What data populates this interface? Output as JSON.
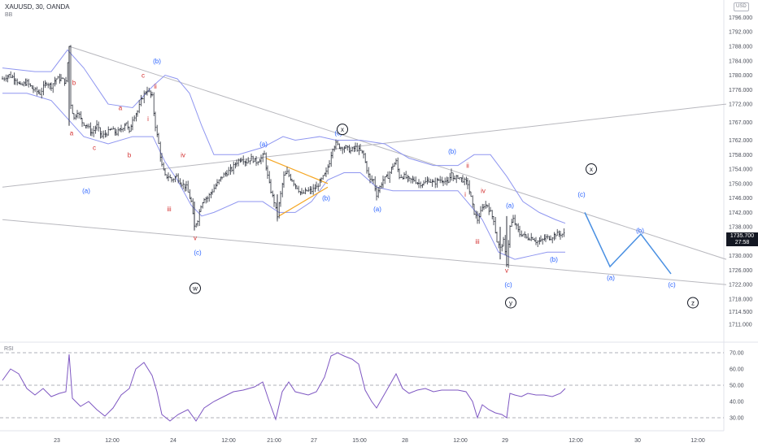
{
  "header": {
    "title": "XAUUSD, 30, OANDA",
    "indicator": "BB",
    "currency": "USD"
  },
  "price_tag": {
    "price": "1735.700",
    "countdown": "27:58"
  },
  "rsi_label": "RSI",
  "colors": {
    "candle": "#2a2e39",
    "band": "#8f96f0",
    "trendline": "#b8b8be",
    "wave_red": "#d32f2f",
    "wave_blue": "#2962ff",
    "projection": "#4a90e2",
    "triangle": "#f5a623",
    "rsi_line": "#7e57c2",
    "rsi_guides": "#9598a1"
  },
  "chart_data": {
    "type": "candlestick",
    "symbol": "XAUUSD",
    "interval": "30",
    "ylim": [
      1709,
      1797
    ],
    "price_ticks": [
      "1796.000",
      "1792.000",
      "1788.000",
      "1784.000",
      "1780.000",
      "1776.000",
      "1772.000",
      "1767.000",
      "1762.000",
      "1758.000",
      "1754.000",
      "1750.000",
      "1746.000",
      "1742.000",
      "1738.000",
      "1734.000",
      "1730.000",
      "1726.000",
      "1722.000",
      "1718.000",
      "1714.500",
      "1711.000"
    ],
    "time_ticks": [
      "23",
      "12:00",
      "24",
      "12:00",
      "21:00",
      "27",
      "15:00",
      "28",
      "12:00",
      "29",
      "12:00",
      "30",
      "12:00"
    ],
    "price_path": [
      [
        0,
        1779
      ],
      [
        8,
        1780
      ],
      [
        16,
        1779
      ],
      [
        22,
        1777
      ],
      [
        30,
        1778
      ],
      [
        38,
        1776
      ],
      [
        46,
        1775
      ],
      [
        54,
        1778
      ],
      [
        60,
        1777
      ],
      [
        66,
        1779
      ],
      [
        72,
        1779
      ],
      [
        78,
        1778
      ],
      [
        82,
        1788
      ],
      [
        84,
        1772
      ],
      [
        88,
        1768
      ],
      [
        92,
        1770
      ],
      [
        98,
        1767
      ],
      [
        104,
        1766
      ],
      [
        110,
        1764
      ],
      [
        116,
        1766
      ],
      [
        122,
        1763
      ],
      [
        128,
        1764
      ],
      [
        134,
        1765
      ],
      [
        140,
        1764
      ],
      [
        146,
        1765
      ],
      [
        152,
        1767
      ],
      [
        156,
        1764
      ],
      [
        160,
        1768
      ],
      [
        166,
        1770
      ],
      [
        172,
        1774
      ],
      [
        178,
        1776
      ],
      [
        184,
        1774
      ],
      [
        188,
        1766
      ],
      [
        192,
        1761
      ],
      [
        196,
        1755
      ],
      [
        200,
        1752
      ],
      [
        204,
        1752
      ],
      [
        208,
        1751
      ],
      [
        214,
        1752
      ],
      [
        220,
        1750
      ],
      [
        226,
        1749
      ],
      [
        232,
        1745
      ],
      [
        236,
        1738
      ],
      [
        240,
        1740
      ],
      [
        244,
        1744
      ],
      [
        248,
        1746
      ],
      [
        252,
        1746
      ],
      [
        258,
        1748
      ],
      [
        264,
        1750
      ],
      [
        270,
        1752
      ],
      [
        276,
        1753
      ],
      [
        282,
        1754
      ],
      [
        288,
        1756
      ],
      [
        294,
        1757
      ],
      [
        300,
        1756
      ],
      [
        306,
        1757
      ],
      [
        312,
        1756
      ],
      [
        318,
        1757
      ],
      [
        322,
        1758
      ],
      [
        326,
        1752
      ],
      [
        330,
        1748
      ],
      [
        334,
        1745
      ],
      [
        338,
        1741
      ],
      [
        342,
        1747
      ],
      [
        346,
        1752
      ],
      [
        350,
        1753
      ],
      [
        356,
        1751
      ],
      [
        362,
        1749
      ],
      [
        368,
        1747
      ],
      [
        374,
        1748
      ],
      [
        380,
        1748
      ],
      [
        386,
        1749
      ],
      [
        392,
        1751
      ],
      [
        398,
        1753
      ],
      [
        402,
        1756
      ],
      [
        406,
        1760
      ],
      [
        410,
        1761
      ],
      [
        416,
        1760
      ],
      [
        422,
        1760
      ],
      [
        428,
        1759
      ],
      [
        434,
        1760
      ],
      [
        440,
        1759
      ],
      [
        444,
        1758
      ],
      [
        448,
        1754
      ],
      [
        452,
        1751
      ],
      [
        456,
        1751
      ],
      [
        460,
        1747
      ],
      [
        464,
        1749
      ],
      [
        468,
        1751
      ],
      [
        474,
        1752
      ],
      [
        480,
        1755
      ],
      [
        484,
        1756
      ],
      [
        488,
        1752
      ],
      [
        494,
        1752
      ],
      [
        500,
        1751
      ],
      [
        506,
        1751
      ],
      [
        512,
        1750
      ],
      [
        518,
        1750
      ],
      [
        524,
        1751
      ],
      [
        530,
        1750
      ],
      [
        536,
        1751
      ],
      [
        542,
        1751
      ],
      [
        548,
        1750
      ],
      [
        552,
        1753
      ],
      [
        556,
        1751
      ],
      [
        560,
        1752
      ],
      [
        566,
        1751
      ],
      [
        572,
        1750
      ],
      [
        576,
        1746
      ],
      [
        580,
        1742
      ],
      [
        584,
        1740
      ],
      [
        588,
        1742
      ],
      [
        592,
        1744
      ],
      [
        596,
        1744
      ],
      [
        600,
        1742
      ],
      [
        604,
        1740
      ],
      [
        608,
        1734
      ],
      [
        612,
        1732
      ],
      [
        616,
        1734
      ],
      [
        620,
        1728
      ],
      [
        624,
        1738
      ],
      [
        628,
        1740
      ],
      [
        632,
        1738
      ],
      [
        636,
        1736
      ],
      [
        640,
        1736
      ],
      [
        644,
        1735
      ],
      [
        648,
        1735
      ],
      [
        652,
        1735
      ],
      [
        656,
        1734
      ],
      [
        662,
        1734
      ],
      [
        668,
        1735
      ],
      [
        674,
        1735
      ],
      [
        680,
        1736
      ],
      [
        686,
        1736
      ],
      [
        692,
        1736
      ]
    ],
    "bollinger_upper": [
      [
        0,
        1782
      ],
      [
        40,
        1781
      ],
      [
        60,
        1781
      ],
      [
        80,
        1787
      ],
      [
        100,
        1782
      ],
      [
        130,
        1772
      ],
      [
        160,
        1771
      ],
      [
        185,
        1777
      ],
      [
        200,
        1780
      ],
      [
        215,
        1779
      ],
      [
        230,
        1775
      ],
      [
        245,
        1766
      ],
      [
        260,
        1758
      ],
      [
        290,
        1758
      ],
      [
        320,
        1760
      ],
      [
        345,
        1763
      ],
      [
        360,
        1762
      ],
      [
        390,
        1763
      ],
      [
        410,
        1762
      ],
      [
        440,
        1762
      ],
      [
        470,
        1761
      ],
      [
        500,
        1757
      ],
      [
        530,
        1755
      ],
      [
        560,
        1755
      ],
      [
        580,
        1758
      ],
      [
        600,
        1758
      ],
      [
        620,
        1752
      ],
      [
        640,
        1745
      ],
      [
        660,
        1742
      ],
      [
        680,
        1740
      ],
      [
        692,
        1739
      ]
    ],
    "bollinger_lower": [
      [
        0,
        1775
      ],
      [
        30,
        1775
      ],
      [
        60,
        1773
      ],
      [
        80,
        1768
      ],
      [
        100,
        1763
      ],
      [
        130,
        1761
      ],
      [
        160,
        1763
      ],
      [
        185,
        1763
      ],
      [
        200,
        1756
      ],
      [
        215,
        1751
      ],
      [
        232,
        1744
      ],
      [
        245,
        1741
      ],
      [
        260,
        1742
      ],
      [
        290,
        1745
      ],
      [
        320,
        1745
      ],
      [
        340,
        1742
      ],
      [
        360,
        1742
      ],
      [
        380,
        1745
      ],
      [
        400,
        1751
      ],
      [
        420,
        1753
      ],
      [
        440,
        1753
      ],
      [
        460,
        1749
      ],
      [
        480,
        1748
      ],
      [
        500,
        1748
      ],
      [
        530,
        1748
      ],
      [
        560,
        1748
      ],
      [
        575,
        1744
      ],
      [
        590,
        1740
      ],
      [
        610,
        1731
      ],
      [
        630,
        1729
      ],
      [
        650,
        1730
      ],
      [
        670,
        1731
      ],
      [
        692,
        1731
      ]
    ],
    "trendlines": [
      {
        "from": [
          82,
          1788
        ],
        "to": [
          890,
          1729
        ]
      },
      {
        "from": [
          0,
          1749
        ],
        "to": [
          890,
          1772
        ]
      },
      {
        "from": [
          0,
          1740
        ],
        "to": [
          890,
          1722
        ]
      }
    ],
    "triangle_lines": [
      {
        "from": [
          324,
          1757
        ],
        "to": [
          400,
          1750
        ]
      },
      {
        "from": [
          340,
          1741
        ],
        "to": [
          400,
          1749
        ]
      }
    ],
    "projection_path": [
      [
        716,
        1742
      ],
      [
        747,
        1727
      ],
      [
        785,
        1736
      ],
      [
        822,
        1725
      ]
    ],
    "wave_labels": [
      {
        "t": "b",
        "x": 88,
        "y": 1778,
        "c": "red"
      },
      {
        "t": "a",
        "x": 85,
        "y": 1764,
        "c": "red"
      },
      {
        "t": "c",
        "x": 113,
        "y": 1760,
        "c": "red"
      },
      {
        "t": "a",
        "x": 145,
        "y": 1771,
        "c": "red"
      },
      {
        "t": "b",
        "x": 156,
        "y": 1758,
        "c": "red"
      },
      {
        "t": "c",
        "x": 173,
        "y": 1780,
        "c": "red"
      },
      {
        "t": "ii",
        "x": 188,
        "y": 1777,
        "c": "red"
      },
      {
        "t": "i",
        "x": 179,
        "y": 1768,
        "c": "red"
      },
      {
        "t": "iv",
        "x": 222,
        "y": 1758,
        "c": "red"
      },
      {
        "t": "iii",
        "x": 205,
        "y": 1743,
        "c": "red"
      },
      {
        "t": "v",
        "x": 237,
        "y": 1735,
        "c": "red"
      },
      {
        "t": "(b)",
        "x": 190,
        "y": 1784,
        "c": "blue"
      },
      {
        "t": "(a)",
        "x": 103,
        "y": 1748,
        "c": "blue"
      },
      {
        "t": "(c)",
        "x": 240,
        "y": 1731,
        "c": "blue"
      },
      {
        "t": "(a)",
        "x": 321,
        "y": 1761,
        "c": "blue"
      },
      {
        "t": "(c)",
        "x": 413,
        "y": 1764,
        "c": "blue"
      },
      {
        "t": "(b)",
        "x": 398,
        "y": 1746,
        "c": "blue"
      },
      {
        "t": "(a)",
        "x": 461,
        "y": 1743,
        "c": "blue"
      },
      {
        "t": "(b)",
        "x": 553,
        "y": 1759,
        "c": "blue"
      },
      {
        "t": "ii",
        "x": 572,
        "y": 1755,
        "c": "red"
      },
      {
        "t": "i",
        "x": 569,
        "y": 1747,
        "c": "red"
      },
      {
        "t": "iv",
        "x": 591,
        "y": 1748,
        "c": "red"
      },
      {
        "t": "iii",
        "x": 584,
        "y": 1734,
        "c": "red"
      },
      {
        "t": "v",
        "x": 620,
        "y": 1726,
        "c": "red"
      },
      {
        "t": "(a)",
        "x": 624,
        "y": 1744,
        "c": "blue"
      },
      {
        "t": "(b)",
        "x": 678,
        "y": 1729,
        "c": "blue"
      },
      {
        "t": "(c)",
        "x": 622,
        "y": 1722,
        "c": "blue"
      },
      {
        "t": "(c)",
        "x": 712,
        "y": 1747,
        "c": "blue"
      },
      {
        "t": "(b)",
        "x": 784,
        "y": 1737,
        "c": "blue"
      },
      {
        "t": "(a)",
        "x": 748,
        "y": 1724,
        "c": "blue"
      },
      {
        "t": "(c)",
        "x": 823,
        "y": 1722,
        "c": "blue"
      }
    ],
    "circle_labels": [
      {
        "t": "w",
        "x": 237,
        "y": 1721
      },
      {
        "t": "x",
        "x": 418,
        "y": 1765
      },
      {
        "t": "x",
        "x": 724,
        "y": 1754
      },
      {
        "t": "y",
        "x": 625,
        "y": 1717
      },
      {
        "t": "z",
        "x": 849,
        "y": 1717
      }
    ],
    "rsi": {
      "ylim": [
        25,
        75
      ],
      "levels": [
        70,
        50,
        30
      ],
      "tick_labels": [
        "70.00",
        "60.00",
        "50.00",
        "40.00",
        "30.00"
      ],
      "values": [
        [
          0,
          53
        ],
        [
          10,
          60
        ],
        [
          20,
          57
        ],
        [
          30,
          48
        ],
        [
          40,
          44
        ],
        [
          50,
          48
        ],
        [
          60,
          43
        ],
        [
          70,
          45
        ],
        [
          78,
          46
        ],
        [
          82,
          69
        ],
        [
          86,
          42
        ],
        [
          96,
          37
        ],
        [
          106,
          40
        ],
        [
          116,
          35
        ],
        [
          126,
          31
        ],
        [
          136,
          36
        ],
        [
          146,
          44
        ],
        [
          156,
          48
        ],
        [
          164,
          60
        ],
        [
          174,
          64
        ],
        [
          184,
          56
        ],
        [
          190,
          46
        ],
        [
          196,
          32
        ],
        [
          206,
          28
        ],
        [
          216,
          32
        ],
        [
          228,
          35
        ],
        [
          238,
          28
        ],
        [
          248,
          36
        ],
        [
          260,
          40
        ],
        [
          272,
          43
        ],
        [
          284,
          46
        ],
        [
          296,
          47
        ],
        [
          310,
          49
        ],
        [
          320,
          52
        ],
        [
          328,
          40
        ],
        [
          336,
          29
        ],
        [
          344,
          46
        ],
        [
          352,
          52
        ],
        [
          360,
          46
        ],
        [
          368,
          45
        ],
        [
          376,
          44
        ],
        [
          386,
          46
        ],
        [
          396,
          55
        ],
        [
          404,
          68
        ],
        [
          412,
          70
        ],
        [
          420,
          68
        ],
        [
          430,
          66
        ],
        [
          438,
          63
        ],
        [
          446,
          47
        ],
        [
          454,
          40
        ],
        [
          460,
          36
        ],
        [
          468,
          43
        ],
        [
          476,
          50
        ],
        [
          484,
          57
        ],
        [
          492,
          48
        ],
        [
          500,
          45
        ],
        [
          510,
          47
        ],
        [
          520,
          48
        ],
        [
          530,
          46
        ],
        [
          540,
          47
        ],
        [
          550,
          47
        ],
        [
          560,
          47
        ],
        [
          570,
          46
        ],
        [
          578,
          40
        ],
        [
          584,
          30
        ],
        [
          590,
          38
        ],
        [
          598,
          35
        ],
        [
          606,
          33
        ],
        [
          614,
          32
        ],
        [
          620,
          30
        ],
        [
          624,
          45
        ],
        [
          630,
          44
        ],
        [
          638,
          43
        ],
        [
          646,
          45
        ],
        [
          656,
          44
        ],
        [
          666,
          44
        ],
        [
          676,
          43
        ],
        [
          686,
          45
        ],
        [
          692,
          48
        ]
      ]
    }
  }
}
